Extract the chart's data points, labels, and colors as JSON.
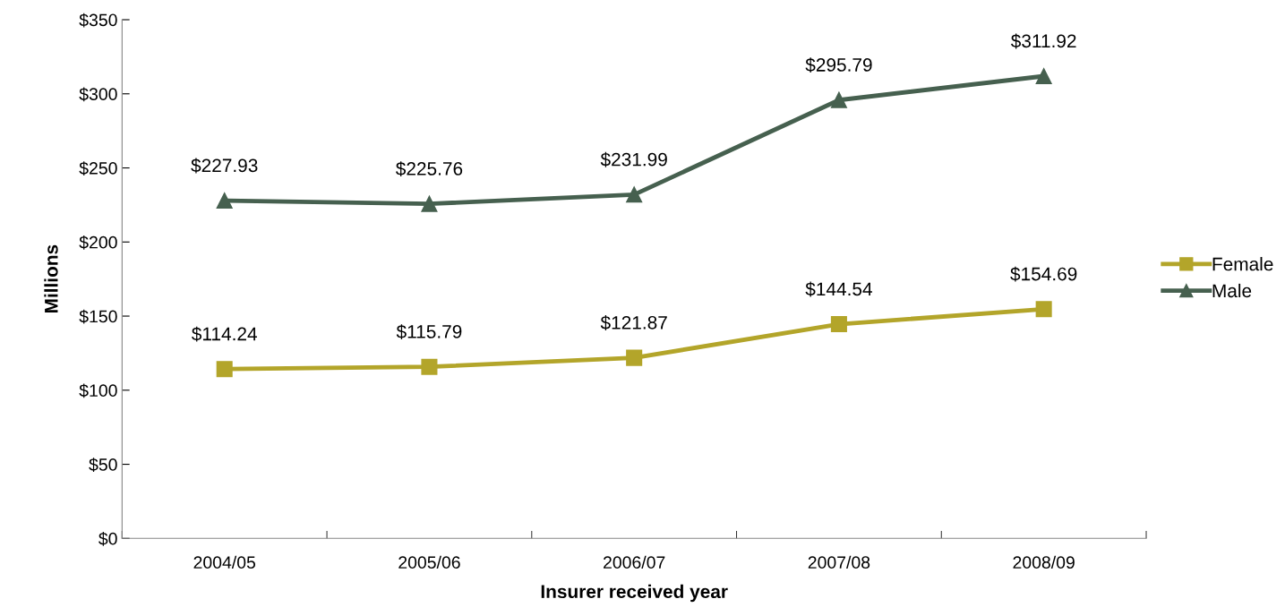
{
  "chart_data": {
    "type": "line",
    "xlabel": "Insurer received year",
    "ylabel": "Millions",
    "categories": [
      "2004/05",
      "2005/06",
      "2006/07",
      "2007/08",
      "2008/09"
    ],
    "series": [
      {
        "name": "Female",
        "color": "#b3a52a",
        "marker": "square",
        "values": [
          114.24,
          115.79,
          121.87,
          144.54,
          154.69
        ],
        "value_labels": [
          "$114.24",
          "$115.79",
          "$121.87",
          "$144.54",
          "$154.69"
        ]
      },
      {
        "name": "Male",
        "color": "#46604f",
        "marker": "triangle",
        "values": [
          227.93,
          225.76,
          231.99,
          295.79,
          311.92
        ],
        "value_labels": [
          "$227.93",
          "$225.76",
          "$231.99",
          "$295.79",
          "$311.92"
        ]
      }
    ],
    "ylim": [
      0,
      350
    ],
    "yticks": [
      {
        "value": 0,
        "label": "$0"
      },
      {
        "value": 50,
        "label": "$50"
      },
      {
        "value": 100,
        "label": "$100"
      },
      {
        "value": 150,
        "label": "$150"
      },
      {
        "value": 200,
        "label": "$200"
      },
      {
        "value": 250,
        "label": "$250"
      },
      {
        "value": 300,
        "label": "$300"
      },
      {
        "value": 350,
        "label": "$350"
      }
    ],
    "grid": false,
    "legend": "right",
    "line_style": "solid"
  }
}
